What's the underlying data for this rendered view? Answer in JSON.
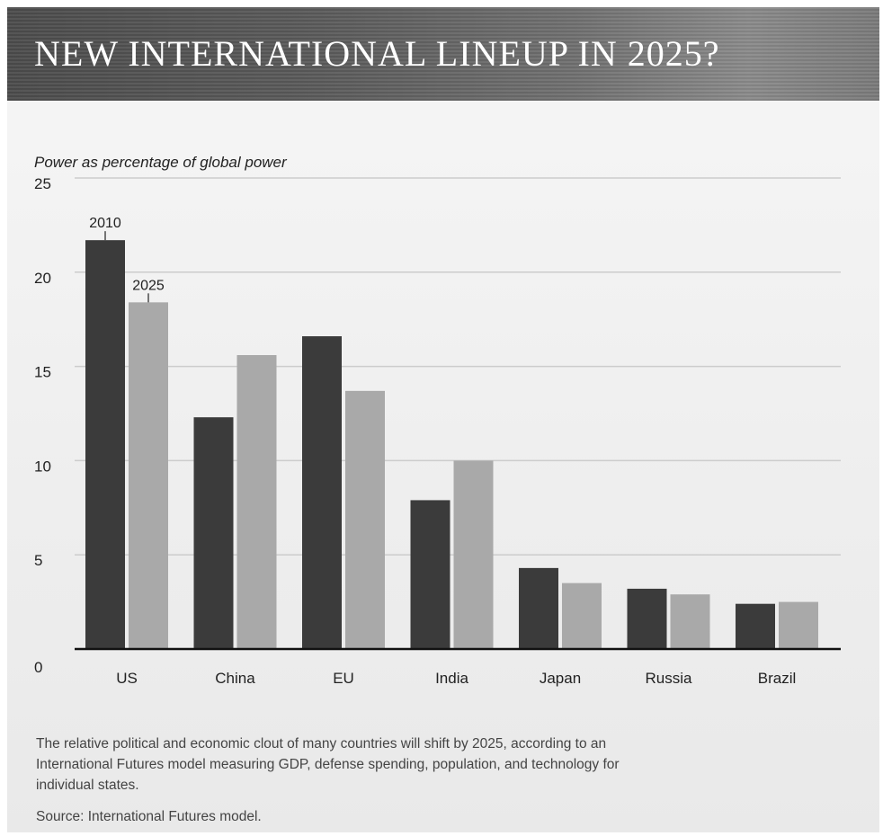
{
  "header": {
    "title": "NEW INTERNATIONAL LINEUP IN 2025?"
  },
  "colors": {
    "series_2010": "#3b3b3b",
    "series_2025": "#a9a9a9",
    "grid": "#cccccc",
    "axis": "#111111"
  },
  "chart_data": {
    "type": "bar",
    "title": "NEW INTERNATIONAL LINEUP IN 2025?",
    "ylabel": "Power as percentage of global power",
    "xlabel": "",
    "categories": [
      "US",
      "China",
      "EU",
      "India",
      "Japan",
      "Russia",
      "Brazil"
    ],
    "series": [
      {
        "name": "2010",
        "values": [
          21.7,
          12.3,
          16.6,
          7.9,
          4.3,
          3.2,
          2.4
        ]
      },
      {
        "name": "2025",
        "values": [
          18.4,
          15.6,
          13.7,
          10.0,
          3.5,
          2.9,
          2.5
        ]
      }
    ],
    "ylim": [
      0,
      25
    ],
    "yticks": [
      0,
      5,
      10,
      15,
      20,
      25
    ],
    "grid": true,
    "legend": "direct labels on first category bars"
  },
  "caption": "The relative political and economic clout of many countries will shift by 2025, according to an International Futures model measuring GDP, defense spending, population, and technology for individual states.",
  "source": "Source: International Futures model."
}
